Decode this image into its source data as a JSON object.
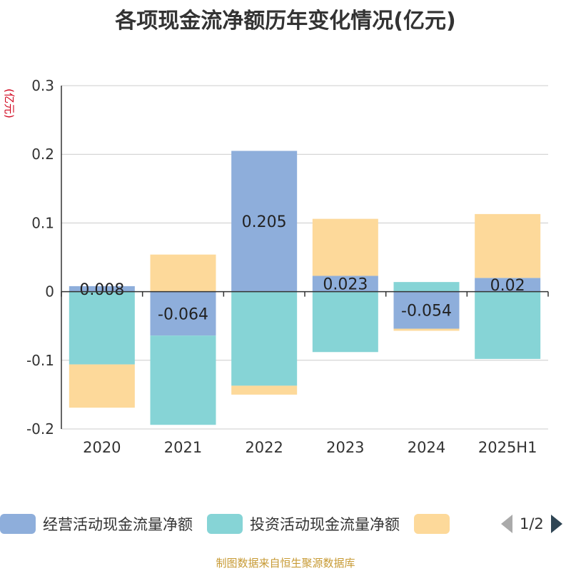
{
  "chart_data": {
    "type": "bar",
    "stacked": true,
    "title": "各项现金流净额历年变化情况(亿元)",
    "unit_label": "(亿元)",
    "categories": [
      "2020",
      "2021",
      "2022",
      "2023",
      "2024",
      "2025H1"
    ],
    "ylim": [
      -0.2,
      0.3
    ],
    "yticks": [
      -0.2,
      -0.1,
      0,
      0.1,
      0.2,
      0.3
    ],
    "grid": true,
    "series": [
      {
        "name": "经营活动现金流量净额",
        "color": "#8eaedb",
        "values": [
          0.008,
          -0.064,
          0.205,
          0.023,
          -0.054,
          0.02
        ],
        "labels": [
          "0.008",
          "-0.064",
          "0.205",
          "0.023",
          "-0.054",
          "0.02"
        ]
      },
      {
        "name": "投资活动现金流量净额",
        "color": "#86d4d6",
        "values": [
          -0.106,
          -0.13,
          -0.137,
          -0.088,
          0.014,
          -0.098
        ]
      },
      {
        "name": "",
        "color": "#fdd99a",
        "values": [
          -0.063,
          0.054,
          -0.013,
          0.083,
          -0.003,
          0.093
        ]
      }
    ],
    "legend": {
      "position": "bottom",
      "page": "1/2"
    },
    "source": "制图数据来自恒生聚源数据库"
  }
}
